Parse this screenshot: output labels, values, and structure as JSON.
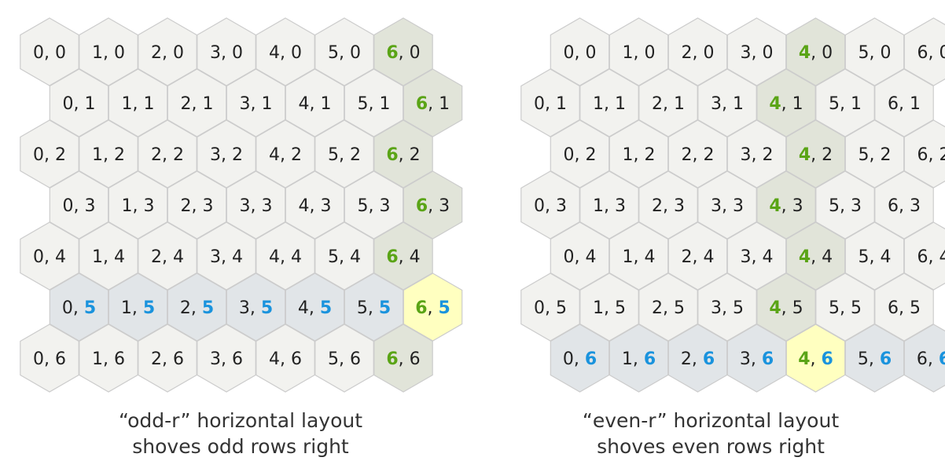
{
  "grids": [
    {
      "id": "odd-r",
      "caption_line1": "“odd-r” horizontal layout",
      "caption_line2": "shoves odd rows right",
      "columns": 7,
      "rows": 7,
      "shoved_row_parity": "odd",
      "highlight_column": 6,
      "highlight_row": 5,
      "selected_cell": [
        6,
        5
      ]
    },
    {
      "id": "even-r",
      "caption_line1": "“even-r” horizontal layout",
      "caption_line2": "shoves even rows right",
      "columns": 7,
      "rows": 7,
      "shoved_row_parity": "even",
      "highlight_column": 4,
      "highlight_row": 6,
      "selected_cell": [
        4,
        6
      ]
    }
  ],
  "label_separator": ", ",
  "colors": {
    "cell_fill": "#f2f2ef",
    "column_fill": "#e1e4d9",
    "row_fill": "#e1e5e8",
    "selected_fill": "#ffffc0",
    "cell_stroke": "#cccccc",
    "text": "#222222",
    "column_text": "#5aa416",
    "row_text": "#1a93dd"
  }
}
